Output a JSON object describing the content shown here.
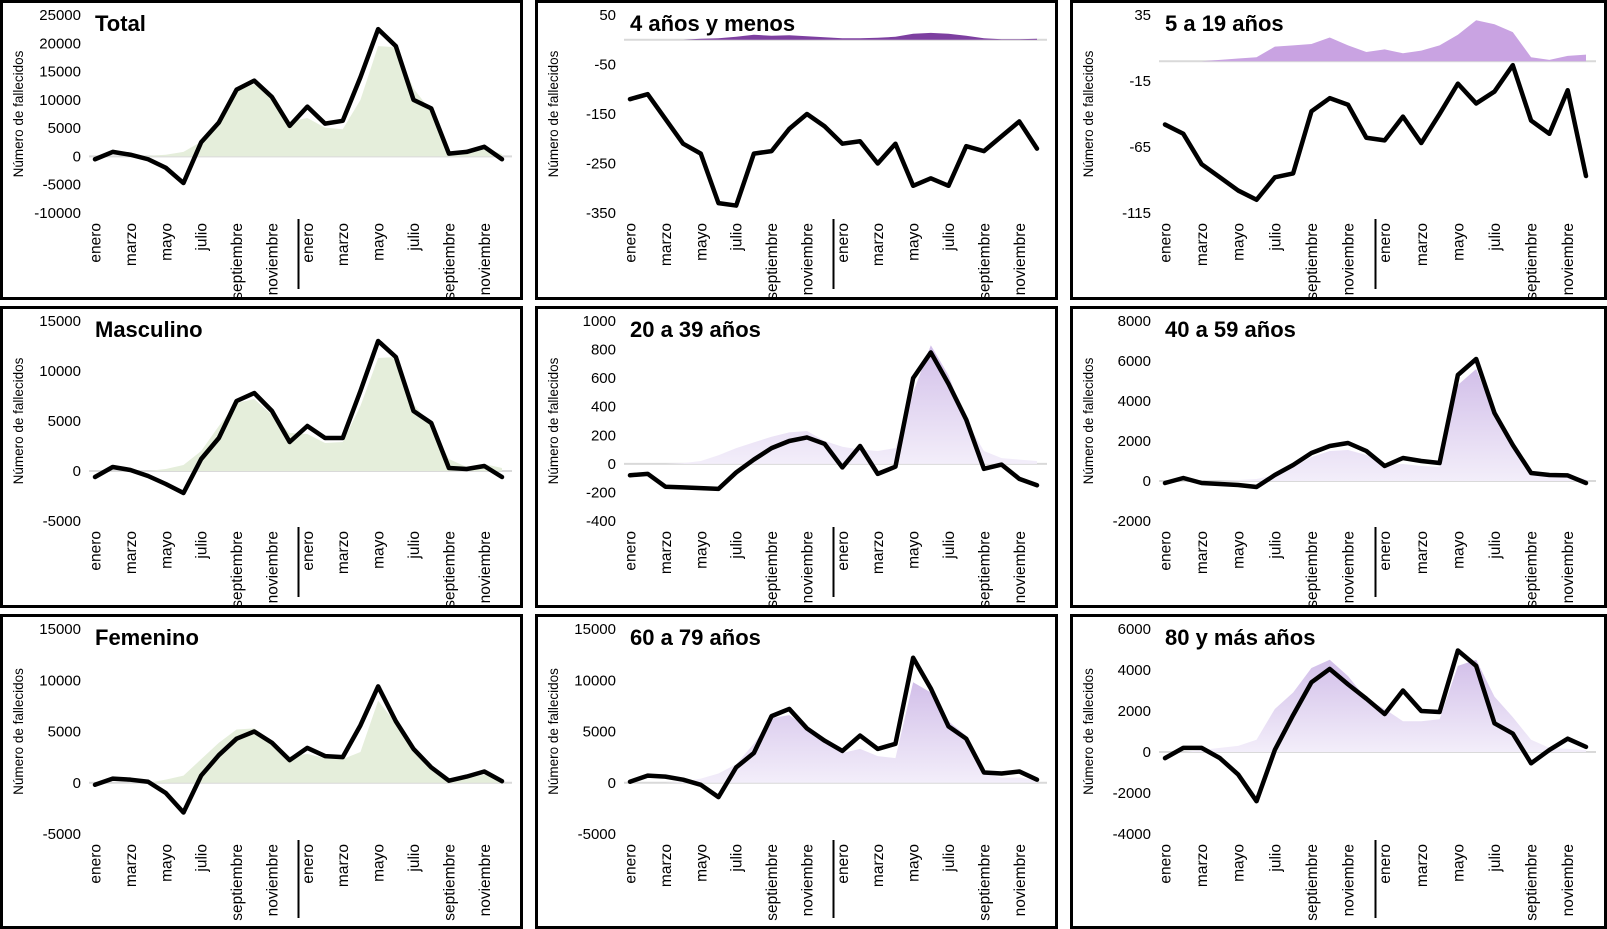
{
  "y_axis_label": "Número de fallecidos",
  "x_tick_labels": [
    "enero",
    "marzo",
    "mayo",
    "julio",
    "septiembre",
    "noviembre",
    "enero",
    "marzo",
    "mayo",
    "julio",
    "septiembre",
    "noviembre"
  ],
  "x_tick_month_indices": [
    0,
    2,
    4,
    6,
    8,
    10,
    12,
    14,
    16,
    18,
    20,
    22
  ],
  "months_per_chart": 24,
  "colors": {
    "line": "#000000",
    "zero_line": "#d9d9d9",
    "panel_border": "#000000",
    "background": "#ffffff",
    "green_fill": "#e5eedb",
    "purple_dark_fill": "#7d3fa0",
    "purple_flat_fill": "#c9a3e2",
    "purple_gradient_top": "#d2bfe9",
    "purple_gradient_bottom": "#f3eefa",
    "year_separator": "#000000"
  },
  "chart_data": [
    {
      "type": "area+line",
      "title": "Total",
      "fill_style": "green",
      "y_ticks": [
        25000,
        20000,
        15000,
        10000,
        5000,
        0,
        -5000,
        -10000
      ],
      "ylim": [
        -10000,
        25000
      ],
      "series": [
        {
          "name": "area",
          "values": [
            0,
            0,
            0,
            100,
            300,
            800,
            2600,
            6000,
            11500,
            12800,
            10400,
            6200,
            6800,
            5100,
            4800,
            10000,
            19500,
            19300,
            12000,
            8000,
            900,
            600,
            1500,
            400
          ]
        },
        {
          "name": "line",
          "values": [
            -500,
            800,
            300,
            -500,
            -2000,
            -4700,
            2500,
            6000,
            11800,
            13400,
            10500,
            5400,
            8800,
            5800,
            6300,
            14000,
            22500,
            19500,
            10000,
            8500,
            500,
            800,
            1700,
            -500
          ]
        }
      ]
    },
    {
      "type": "area+line",
      "title": "4 años y menos",
      "fill_style": "purple-dark",
      "y_ticks": [
        50,
        -50,
        -150,
        -250,
        -350
      ],
      "ylim": [
        -350,
        50
      ],
      "series": [
        {
          "name": "area",
          "values": [
            0,
            0,
            0,
            0,
            2,
            3,
            6,
            10,
            8,
            9,
            7,
            5,
            3,
            3,
            4,
            6,
            12,
            14,
            12,
            8,
            3,
            1,
            1,
            2
          ]
        },
        {
          "name": "line",
          "values": [
            -120,
            -110,
            -160,
            -210,
            -230,
            -330,
            -335,
            -230,
            -225,
            -180,
            -150,
            -175,
            -210,
            -205,
            -250,
            -210,
            -295,
            -280,
            -295,
            -215,
            -225,
            -195,
            -165,
            -220
          ]
        }
      ]
    },
    {
      "type": "area+line",
      "title": "5 a 19 años",
      "fill_style": "purple-flat",
      "y_ticks": [
        35,
        -15,
        -65,
        -115
      ],
      "ylim": [
        -115,
        35
      ],
      "series": [
        {
          "name": "area",
          "values": [
            0,
            0,
            0,
            1,
            2,
            3,
            11,
            12,
            13,
            18,
            12,
            7,
            9,
            6,
            8,
            12,
            20,
            31,
            28,
            22,
            3,
            1,
            4,
            5
          ]
        },
        {
          "name": "line",
          "values": [
            -48,
            -55,
            -78,
            -88,
            -98,
            -105,
            -88,
            -85,
            -38,
            -28,
            -33,
            -58,
            -60,
            -42,
            -62,
            -40,
            -17,
            -32,
            -23,
            -3,
            -45,
            -55,
            -22,
            -87
          ]
        }
      ]
    },
    {
      "type": "area+line",
      "title": "Masculino",
      "fill_style": "green",
      "y_ticks": [
        15000,
        10000,
        5000,
        0,
        -5000
      ],
      "ylim": [
        -5000,
        15000
      ],
      "series": [
        {
          "name": "area",
          "values": [
            0,
            0,
            0,
            0,
            200,
            600,
            2000,
            4500,
            6800,
            7200,
            5600,
            3800,
            3700,
            2800,
            2900,
            6500,
            11300,
            11400,
            6700,
            4500,
            1200,
            400,
            700,
            300
          ]
        },
        {
          "name": "line",
          "values": [
            -600,
            400,
            100,
            -500,
            -1300,
            -2200,
            1200,
            3300,
            7000,
            7800,
            6000,
            2900,
            4500,
            3300,
            3300,
            8000,
            13000,
            11400,
            6000,
            4800,
            300,
            200,
            500,
            -600
          ]
        }
      ]
    },
    {
      "type": "area+line",
      "title": "20 a 39 años",
      "fill_style": "purple-gradient",
      "y_ticks": [
        1000,
        800,
        600,
        400,
        200,
        0,
        -200,
        -400
      ],
      "ylim": [
        -400,
        1000
      ],
      "series": [
        {
          "name": "area",
          "values": [
            0,
            0,
            0,
            5,
            20,
            60,
            110,
            150,
            190,
            220,
            230,
            160,
            120,
            100,
            90,
            110,
            500,
            830,
            620,
            300,
            90,
            40,
            30,
            20
          ]
        },
        {
          "name": "line",
          "values": [
            -80,
            -70,
            -160,
            -165,
            -170,
            -175,
            -60,
            30,
            110,
            160,
            185,
            140,
            -25,
            125,
            -70,
            -20,
            600,
            780,
            560,
            310,
            -35,
            -5,
            -105,
            -150
          ]
        }
      ]
    },
    {
      "type": "area+line",
      "title": "40 a 59 años",
      "fill_style": "purple-gradient",
      "y_ticks": [
        8000,
        6000,
        4000,
        2000,
        0,
        -2000
      ],
      "ylim": [
        -2000,
        8000
      ],
      "series": [
        {
          "name": "area",
          "values": [
            0,
            0,
            0,
            0,
            50,
            100,
            300,
            700,
            1200,
            1500,
            1550,
            1300,
            800,
            850,
            750,
            700,
            4800,
            5600,
            3300,
            1900,
            450,
            300,
            250,
            100
          ]
        },
        {
          "name": "line",
          "values": [
            -100,
            150,
            -100,
            -150,
            -200,
            -300,
            300,
            800,
            1400,
            1750,
            1900,
            1500,
            750,
            1150,
            1000,
            900,
            5300,
            6100,
            3400,
            1800,
            400,
            300,
            280,
            -100
          ]
        }
      ]
    },
    {
      "type": "area+line",
      "title": "Femenino",
      "fill_style": "green",
      "y_ticks": [
        15000,
        10000,
        5000,
        0,
        -5000
      ],
      "ylim": [
        -5000,
        15000
      ],
      "series": [
        {
          "name": "area",
          "values": [
            0,
            0,
            0,
            0,
            300,
            700,
            2300,
            3900,
            5200,
            5300,
            4100,
            2600,
            2800,
            2400,
            2300,
            3000,
            8000,
            5800,
            3400,
            1400,
            300,
            400,
            800,
            150
          ]
        },
        {
          "name": "line",
          "values": [
            -200,
            400,
            300,
            100,
            -1000,
            -2900,
            700,
            2700,
            4300,
            5000,
            3900,
            2200,
            3400,
            2600,
            2500,
            5600,
            9400,
            6000,
            3300,
            1500,
            200,
            600,
            1100,
            150
          ]
        }
      ]
    },
    {
      "type": "area+line",
      "title": "60 a 79 años",
      "fill_style": "purple-gradient",
      "y_ticks": [
        15000,
        10000,
        5000,
        0,
        -5000
      ],
      "ylim": [
        -5000,
        15000
      ],
      "series": [
        {
          "name": "area",
          "values": [
            0,
            0,
            0,
            100,
            400,
            900,
            1800,
            3800,
            6300,
            6600,
            5400,
            4200,
            2900,
            3300,
            2600,
            2400,
            9800,
            8800,
            6000,
            4600,
            900,
            500,
            500,
            300
          ]
        },
        {
          "name": "line",
          "values": [
            100,
            700,
            600,
            300,
            -200,
            -1400,
            1500,
            2900,
            6500,
            7200,
            5300,
            4100,
            3100,
            4600,
            3300,
            3800,
            12200,
            9200,
            5500,
            4300,
            1000,
            900,
            1100,
            300
          ]
        }
      ]
    },
    {
      "type": "area+line",
      "title": "80 y más años",
      "fill_style": "purple-gradient",
      "y_ticks": [
        6000,
        4000,
        2000,
        0,
        -2000,
        -4000
      ],
      "ylim": [
        -4000,
        6000
      ],
      "series": [
        {
          "name": "area",
          "values": [
            0,
            0,
            100,
            200,
            300,
            600,
            2100,
            2900,
            4100,
            4500,
            3700,
            2600,
            2100,
            1500,
            1500,
            1600,
            4200,
            4500,
            2700,
            1700,
            600,
            200,
            150,
            100
          ]
        },
        {
          "name": "line",
          "values": [
            -300,
            200,
            200,
            -300,
            -1100,
            -2400,
            100,
            1800,
            3400,
            4050,
            3300,
            2600,
            1850,
            3000,
            2000,
            1950,
            4950,
            4200,
            1400,
            900,
            -550,
            100,
            650,
            250
          ]
        }
      ]
    }
  ]
}
